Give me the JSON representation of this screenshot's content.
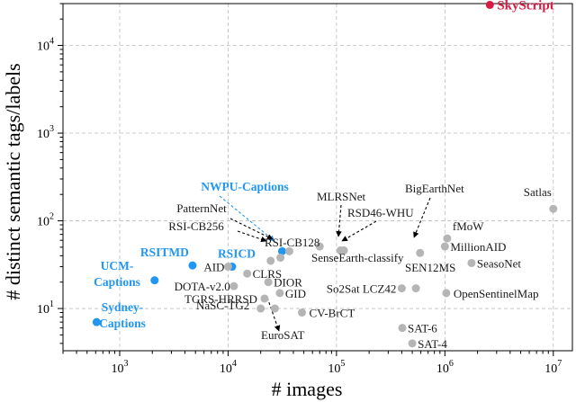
{
  "chart_data": {
    "type": "scatter",
    "xlabel": "# images",
    "ylabel": "# distinct semantic tags/labels",
    "xscale": "log",
    "yscale": "log",
    "xlim": [
      300,
      15000000
    ],
    "ylim": [
      3.3,
      30000
    ],
    "x_ticks": [
      {
        "value": 1000,
        "base": "10",
        "exp": "3"
      },
      {
        "value": 10000,
        "base": "10",
        "exp": "4"
      },
      {
        "value": 100000,
        "base": "10",
        "exp": "5"
      },
      {
        "value": 1000000,
        "base": "10",
        "exp": "6"
      },
      {
        "value": 10000000,
        "base": "10",
        "exp": "7"
      }
    ],
    "y_ticks": [
      {
        "value": 10,
        "base": "10",
        "exp": "1"
      },
      {
        "value": 100,
        "base": "10",
        "exp": "2"
      },
      {
        "value": 1000,
        "base": "10",
        "exp": "3"
      },
      {
        "value": 10000,
        "base": "10",
        "exp": "4"
      }
    ],
    "grid": true,
    "colors": {
      "gray": "#b5b5b5",
      "blue": "#2196f3",
      "red": "#d81b43"
    },
    "points": [
      {
        "name": "SkyScript",
        "x": 2600000,
        "y": 29000,
        "group": "red"
      },
      {
        "name": "NWPU-Captions",
        "x": 31500,
        "y": 45,
        "group": "blue"
      },
      {
        "name": "RSITMD",
        "x": 4700,
        "y": 31,
        "group": "blue"
      },
      {
        "name": "RSICD",
        "x": 10900,
        "y": 30,
        "group": "blue"
      },
      {
        "name": "UCM-Captions",
        "x": 2100,
        "y": 21,
        "group": "blue"
      },
      {
        "name": "Sydney-Captions",
        "x": 613,
        "y": 7,
        "group": "blue"
      },
      {
        "name": "AID",
        "x": 10000,
        "y": 30,
        "group": "gray"
      },
      {
        "name": "PatternNet",
        "x": 30400,
        "y": 38,
        "group": "gray"
      },
      {
        "name": "RSI-CB256",
        "x": 24700,
        "y": 35,
        "group": "gray"
      },
      {
        "name": "RSI-CB128",
        "x": 36700,
        "y": 45,
        "group": "gray"
      },
      {
        "name": "CLRS",
        "x": 15000,
        "y": 25,
        "group": "gray"
      },
      {
        "name": "DOTA-v2.0",
        "x": 11300,
        "y": 18,
        "group": "gray"
      },
      {
        "name": "TGRS-HRRSD",
        "x": 21700,
        "y": 13,
        "group": "gray"
      },
      {
        "name": "NaSC-TG2",
        "x": 20000,
        "y": 10,
        "group": "gray"
      },
      {
        "name": "DIOR",
        "x": 23500,
        "y": 20,
        "group": "gray"
      },
      {
        "name": "GID",
        "x": 30000,
        "y": 15,
        "group": "gray"
      },
      {
        "name": "EuroSAT",
        "x": 27000,
        "y": 10,
        "group": "gray"
      },
      {
        "name": "CV-BrCT",
        "x": 48000,
        "y": 9,
        "group": "gray"
      },
      {
        "name": "MLRSNet",
        "x": 109000,
        "y": 46,
        "group": "gray"
      },
      {
        "name": "RSD46-WHU",
        "x": 117000,
        "y": 46,
        "group": "gray"
      },
      {
        "name": "SenseEarth-classify",
        "x": 70000,
        "y": 51,
        "group": "gray"
      },
      {
        "name": "BigEarthNet",
        "x": 590000,
        "y": 43,
        "group": "gray"
      },
      {
        "name": "So2Sat LCZ42",
        "x": 400000,
        "y": 17,
        "group": "gray"
      },
      {
        "name": "SEN12MS",
        "x": 540000,
        "y": 17,
        "group": "gray"
      },
      {
        "name": "SAT-6",
        "x": 405000,
        "y": 6,
        "group": "gray"
      },
      {
        "name": "SAT-4",
        "x": 500000,
        "y": 4,
        "group": "gray"
      },
      {
        "name": "Satlas",
        "x": 10000000,
        "y": 137,
        "group": "gray"
      },
      {
        "name": "fMoW",
        "x": 1050000,
        "y": 63,
        "group": "gray"
      },
      {
        "name": "MillionAID",
        "x": 1000000,
        "y": 51,
        "group": "gray"
      },
      {
        "name": "SeasoNet",
        "x": 1760000,
        "y": 33,
        "group": "gray"
      },
      {
        "name": "OpenSentinelMap",
        "x": 1030000,
        "y": 15,
        "group": "gray"
      }
    ]
  }
}
